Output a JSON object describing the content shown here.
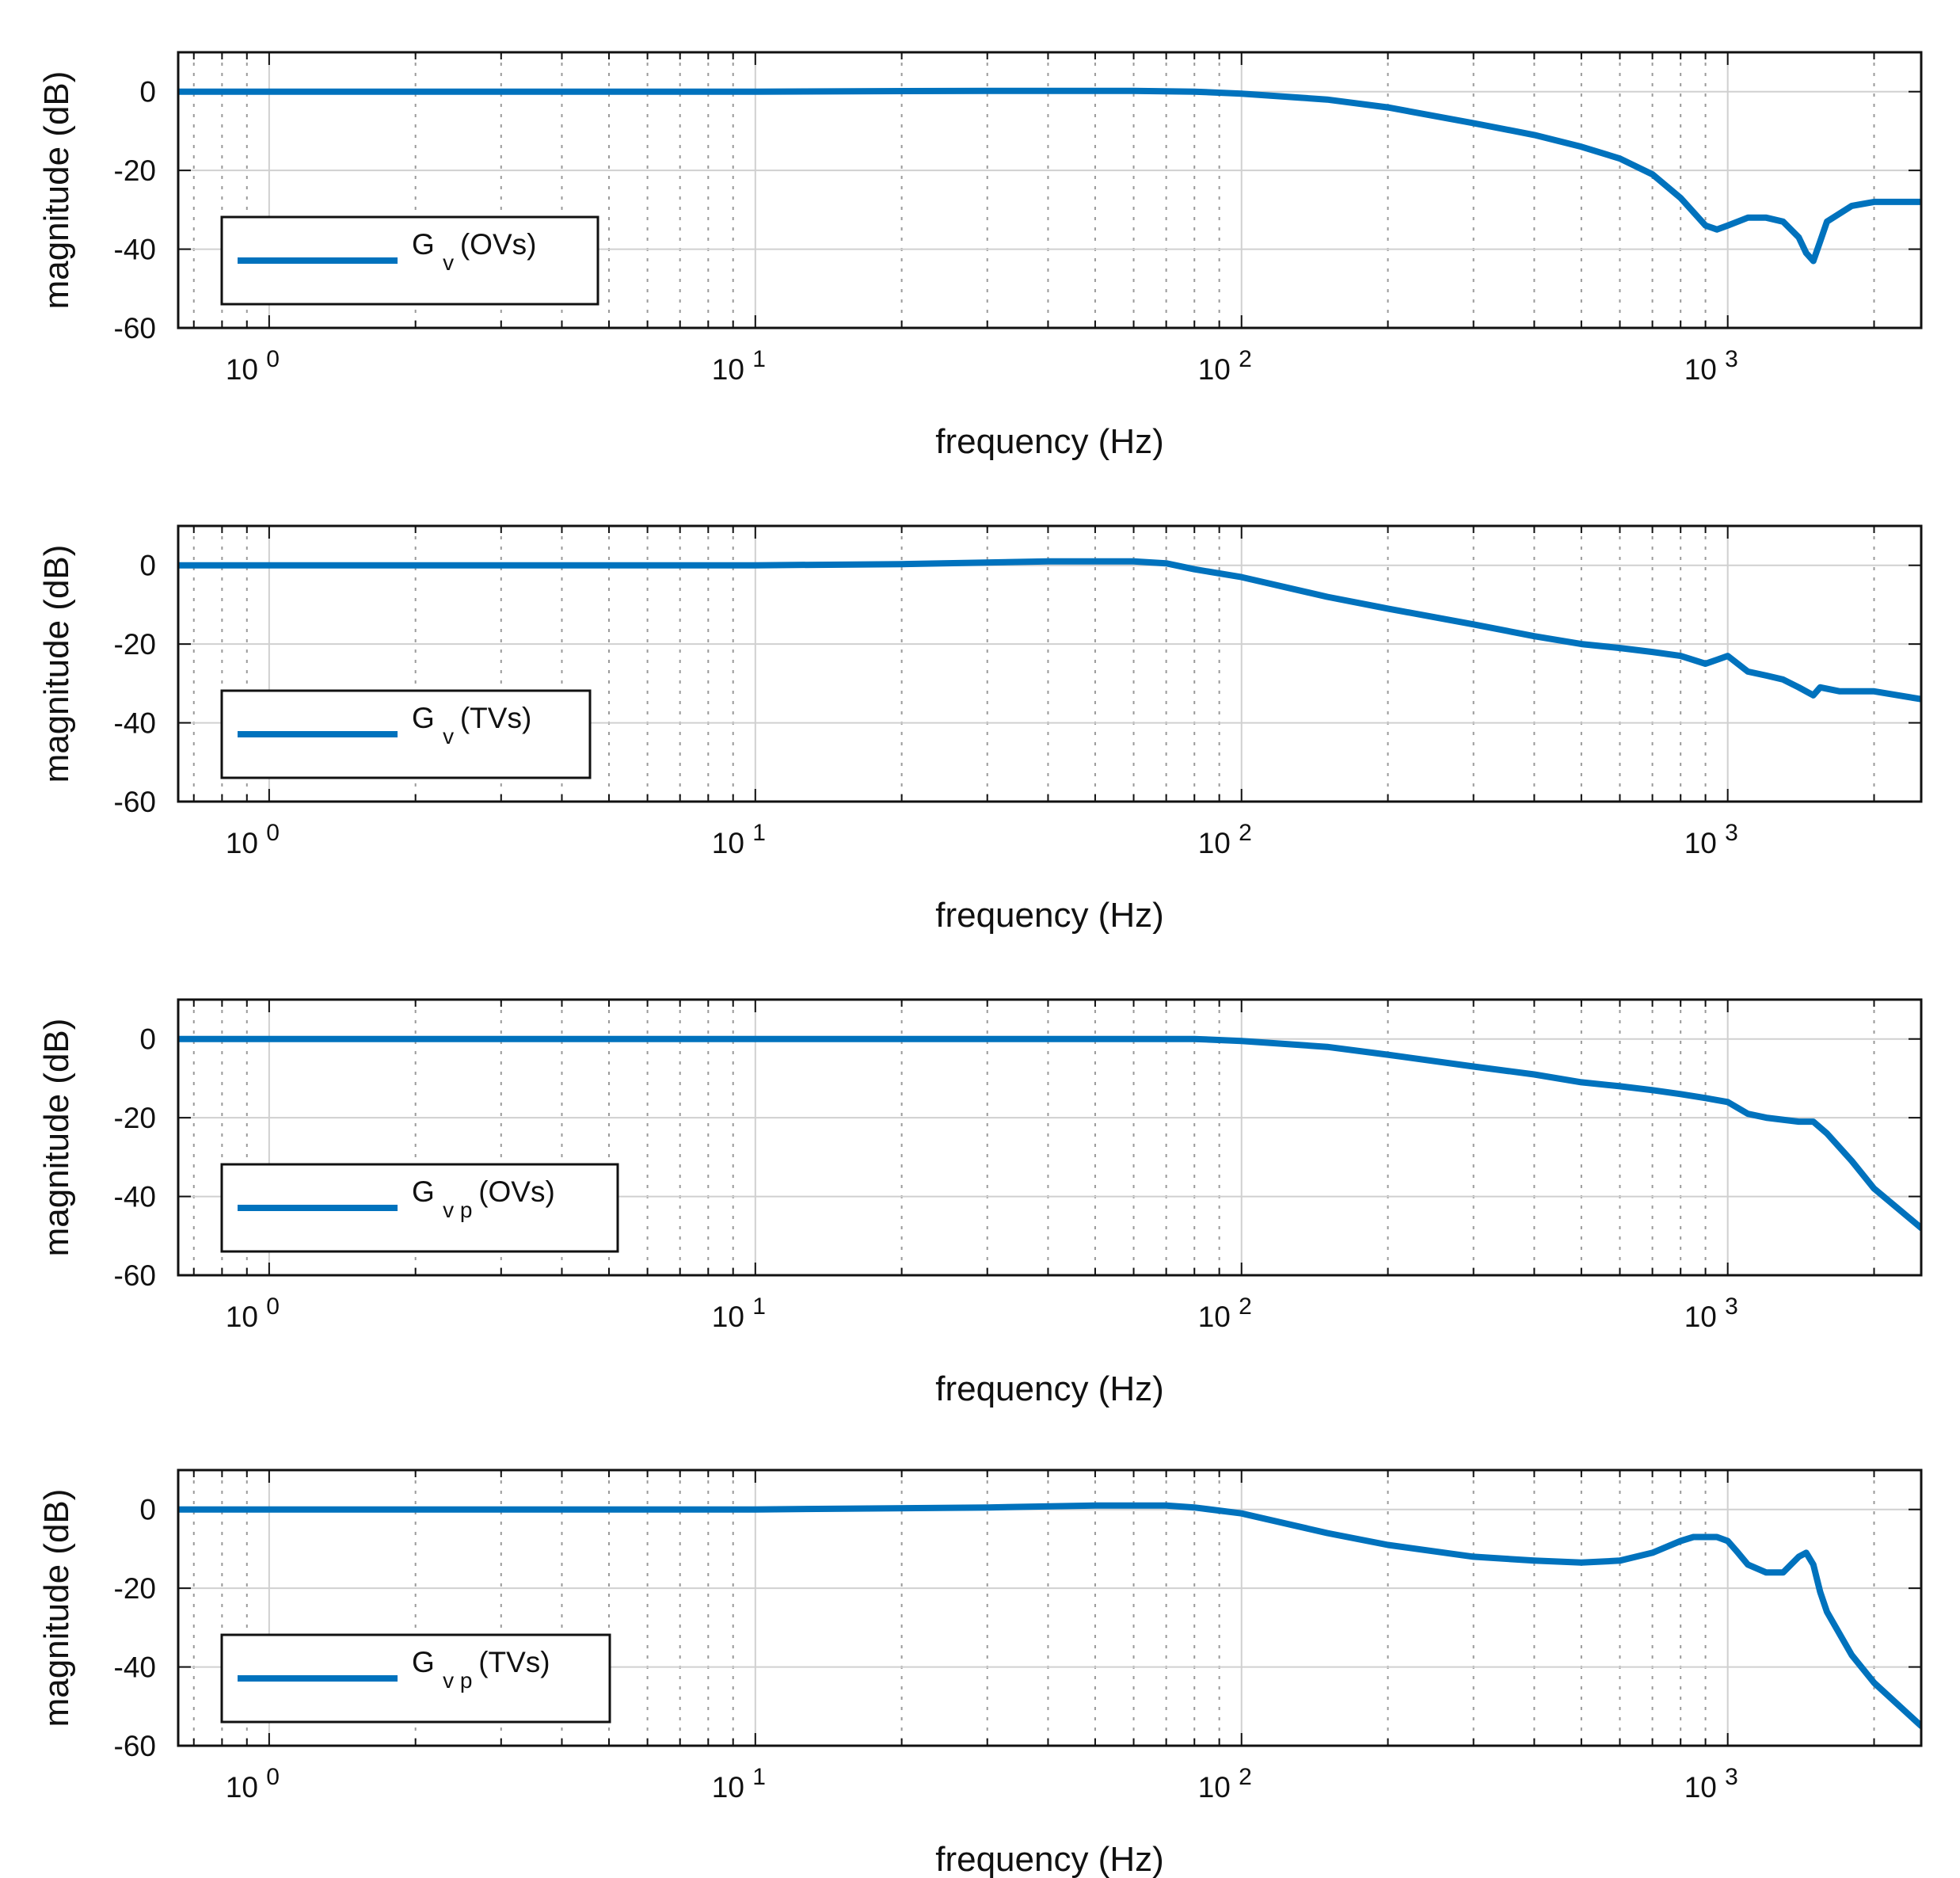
{
  "colors": {
    "series": "#0072BD",
    "grid_major": "#d0d0d0",
    "grid_minor": "#9a9a9a",
    "axis": "#111111"
  },
  "chart_data": [
    {
      "type": "line",
      "xscale": "log",
      "xlim": [
        0.65,
        2500
      ],
      "ylim": [
        -60,
        10
      ],
      "yticks": [
        0,
        -20,
        -40,
        -60
      ],
      "xlabel": "frequency (Hz)",
      "ylabel": "magnitude (dB)",
      "legend": {
        "symbol": "G",
        "subscript": "v",
        "suffix": "(OVs)",
        "position": "bottom-left"
      },
      "series": [
        {
          "name": "G v (OVs)",
          "x": [
            0.65,
            1,
            5,
            10,
            30,
            60,
            80,
            100,
            150,
            200,
            300,
            400,
            500,
            600,
            700,
            800,
            900,
            950,
            1000,
            1100,
            1200,
            1300,
            1400,
            1450,
            1500,
            1550,
            1600,
            1800,
            2000,
            2500
          ],
          "y": [
            0,
            0,
            0,
            0,
            0.2,
            0.2,
            0,
            -0.5,
            -2,
            -4,
            -8,
            -11,
            -14,
            -17,
            -21,
            -27,
            -34,
            -35,
            -34,
            -32,
            -32,
            -33,
            -37,
            -41,
            -43,
            -38,
            -33,
            -29,
            -28,
            -28
          ]
        }
      ]
    },
    {
      "type": "line",
      "xscale": "log",
      "xlim": [
        0.65,
        2500
      ],
      "ylim": [
        -60,
        10
      ],
      "yticks": [
        0,
        -20,
        -40,
        -60
      ],
      "xlabel": "frequency (Hz)",
      "ylabel": "magnitude (dB)",
      "legend": {
        "symbol": "G",
        "subscript": "v",
        "suffix": "(TVs)",
        "position": "bottom-left"
      },
      "series": [
        {
          "name": "G v (TVs)",
          "x": [
            0.65,
            1,
            5,
            10,
            20,
            40,
            60,
            70,
            80,
            100,
            150,
            200,
            300,
            400,
            500,
            600,
            700,
            800,
            900,
            950,
            1000,
            1100,
            1200,
            1300,
            1400,
            1500,
            1550,
            1700,
            2000,
            2500
          ],
          "y": [
            0,
            0,
            0,
            0,
            0.3,
            1,
            1,
            0.5,
            -1,
            -3,
            -8,
            -11,
            -15,
            -18,
            -20,
            -21,
            -22,
            -23,
            -25,
            -24,
            -23,
            -27,
            -28,
            -29,
            -31,
            -33,
            -31,
            -32,
            -32,
            -34
          ]
        }
      ]
    },
    {
      "type": "line",
      "xscale": "log",
      "xlim": [
        0.65,
        2500
      ],
      "ylim": [
        -60,
        10
      ],
      "yticks": [
        0,
        -20,
        -40,
        -60
      ],
      "xlabel": "frequency (Hz)",
      "ylabel": "magnitude (dB)",
      "legend": {
        "symbol": "G",
        "subscript": "v p",
        "suffix": "(OVs)",
        "position": "bottom-left"
      },
      "series": [
        {
          "name": "G v p (OVs)",
          "x": [
            0.65,
            1,
            10,
            50,
            80,
            100,
            150,
            200,
            300,
            400,
            500,
            600,
            700,
            800,
            900,
            1000,
            1100,
            1200,
            1400,
            1500,
            1600,
            1800,
            2000,
            2500
          ],
          "y": [
            0,
            0,
            0,
            0,
            0,
            -0.5,
            -2,
            -4,
            -7,
            -9,
            -11,
            -12,
            -13,
            -14,
            -15,
            -16,
            -19,
            -20,
            -21,
            -21,
            -24,
            -31,
            -38,
            -48
          ]
        }
      ]
    },
    {
      "type": "line",
      "xscale": "log",
      "xlim": [
        0.65,
        2500
      ],
      "ylim": [
        -60,
        10
      ],
      "yticks": [
        0,
        -20,
        -40,
        -60
      ],
      "xlabel": "frequency (Hz)",
      "ylabel": "magnitude (dB)",
      "legend": {
        "symbol": "G",
        "subscript": "v p",
        "suffix": "(TVs)",
        "position": "bottom-left"
      },
      "series": [
        {
          "name": "G v p (TVs)",
          "x": [
            0.65,
            1,
            10,
            30,
            50,
            70,
            80,
            100,
            150,
            200,
            300,
            400,
            500,
            600,
            700,
            800,
            850,
            900,
            950,
            1000,
            1050,
            1100,
            1200,
            1300,
            1400,
            1450,
            1500,
            1550,
            1600,
            1800,
            2000,
            2500
          ],
          "y": [
            0,
            0,
            0,
            0.5,
            1,
            1,
            0.5,
            -1,
            -6,
            -9,
            -12,
            -13,
            -13.5,
            -13,
            -11,
            -8,
            -7,
            -7,
            -7,
            -8,
            -11,
            -14,
            -16,
            -16,
            -12,
            -11,
            -14,
            -21,
            -26,
            -37,
            -44,
            -55
          ]
        }
      ]
    }
  ]
}
